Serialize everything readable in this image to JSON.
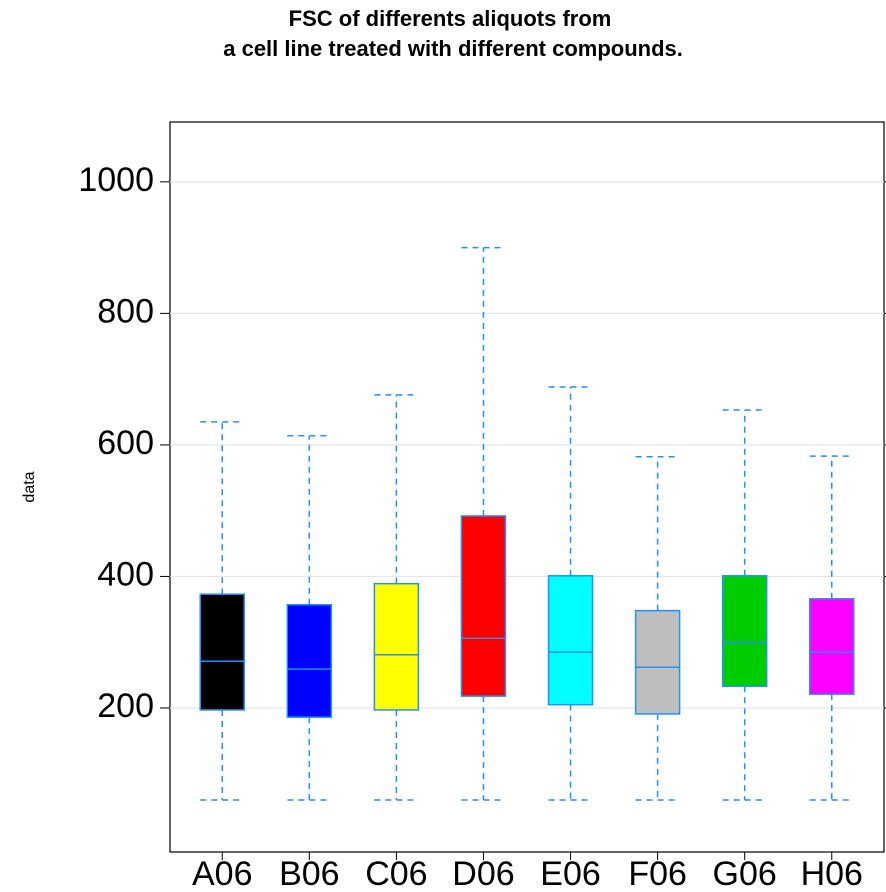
{
  "chart_data": {
    "type": "box",
    "title": "FSC of differents aliquots from\n a cell line treated with different compounds.",
    "y_label": "data",
    "categories": [
      "A06",
      "B06",
      "C06",
      "D06",
      "E06",
      "F06",
      "G06",
      "H06"
    ],
    "min": [
      60,
      60,
      60,
      60,
      60,
      60,
      60,
      60
    ],
    "q1": [
      197,
      186,
      197,
      218,
      205,
      191,
      233,
      221
    ],
    "median": [
      271,
      259,
      281,
      306,
      285,
      262,
      300,
      285
    ],
    "q3": [
      373,
      357,
      389,
      492,
      401,
      348,
      401,
      366
    ],
    "max": [
      635,
      614,
      676,
      900,
      688,
      582,
      653,
      583
    ],
    "colors": [
      "#000000",
      "#0000ff",
      "#ffff00",
      "#ff0000",
      "#00ffff",
      "#bebebe",
      "#00cd00",
      "#ff00ff"
    ],
    "line_color": "#1e90ff",
    "ylim": [
      -19,
      1091
    ],
    "yticks": [
      200,
      400,
      600,
      800,
      1000
    ],
    "grid": true
  }
}
